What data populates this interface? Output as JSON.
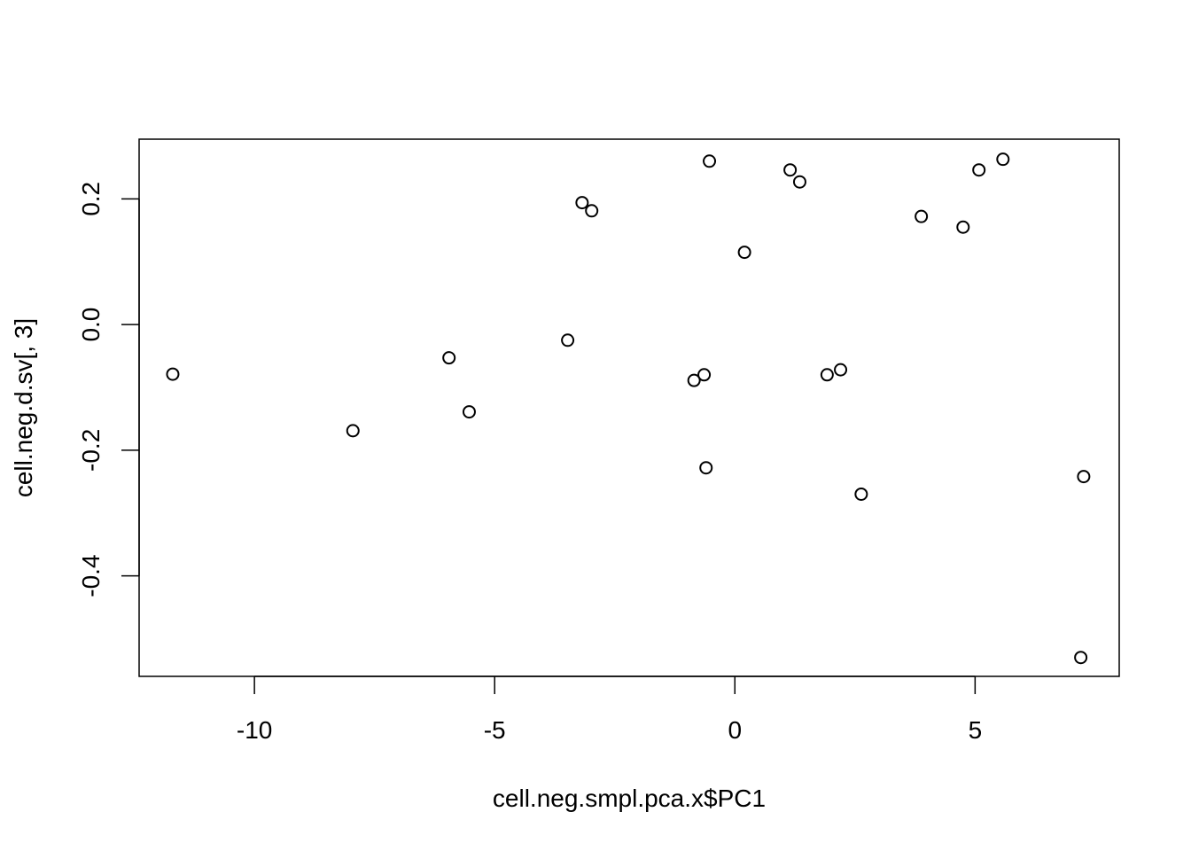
{
  "chart_data": {
    "type": "scatter",
    "xlabel": "cell.neg.smpl.pca.x$PC1",
    "ylabel": "cell.neg.d.sv[, 3]",
    "xlim": [
      -12.4,
      8.0
    ],
    "ylim": [
      -0.56,
      0.295
    ],
    "xticks": [
      -10,
      -5,
      0,
      5
    ],
    "xtick_labels": [
      "-10",
      "-5",
      "0",
      "5"
    ],
    "yticks": [
      -0.4,
      -0.2,
      0.0,
      0.2
    ],
    "ytick_labels": [
      "-0.4",
      "-0.2",
      "0.0",
      "0.2"
    ],
    "grid": false,
    "legend": "none",
    "marker": "open-circle",
    "marker_color": "#000000",
    "points": [
      {
        "x": -11.7,
        "y": -0.079
      },
      {
        "x": -7.95,
        "y": -0.169
      },
      {
        "x": -5.95,
        "y": -0.053
      },
      {
        "x": -5.53,
        "y": -0.139
      },
      {
        "x": -3.48,
        "y": -0.025
      },
      {
        "x": -3.18,
        "y": 0.194
      },
      {
        "x": -2.98,
        "y": 0.181
      },
      {
        "x": -0.85,
        "y": -0.089
      },
      {
        "x": -0.64,
        "y": -0.08
      },
      {
        "x": -0.6,
        "y": -0.228
      },
      {
        "x": -0.53,
        "y": 0.26
      },
      {
        "x": 0.2,
        "y": 0.115
      },
      {
        "x": 1.15,
        "y": 0.246
      },
      {
        "x": 1.35,
        "y": 0.227
      },
      {
        "x": 1.92,
        "y": -0.08
      },
      {
        "x": 2.2,
        "y": -0.072
      },
      {
        "x": 2.63,
        "y": -0.27
      },
      {
        "x": 3.88,
        "y": 0.172
      },
      {
        "x": 4.75,
        "y": 0.155
      },
      {
        "x": 5.08,
        "y": 0.246
      },
      {
        "x": 5.58,
        "y": 0.263
      },
      {
        "x": 7.2,
        "y": -0.53
      },
      {
        "x": 7.26,
        "y": -0.242
      }
    ]
  }
}
